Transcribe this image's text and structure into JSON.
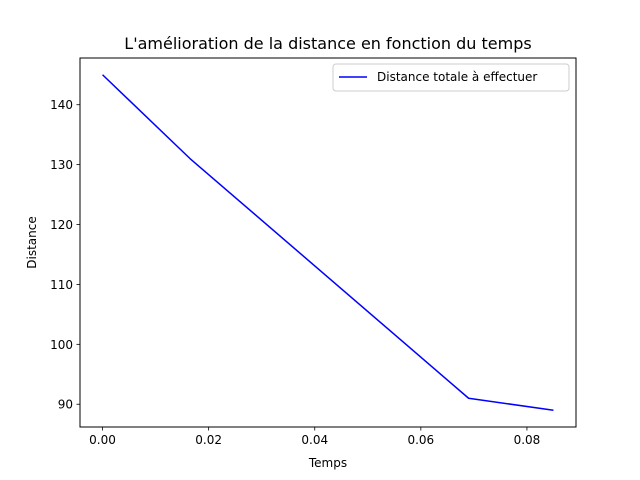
{
  "chart_data": {
    "type": "line",
    "title": "L'amélioration de la distance en fonction du temps",
    "xlabel": "Temps",
    "ylabel": "Distance",
    "xlim": [
      -0.00425,
      0.08925
    ],
    "ylim": [
      86.2,
      147.8
    ],
    "xticks": [
      0.0,
      0.02,
      0.04,
      0.06,
      0.08
    ],
    "xtick_labels": [
      "0.00",
      "0.02",
      "0.04",
      "0.06",
      "0.08"
    ],
    "yticks": [
      90,
      100,
      110,
      120,
      130,
      140
    ],
    "ytick_labels": [
      "90",
      "100",
      "110",
      "120",
      "130",
      "140"
    ],
    "grid": false,
    "legend_position": "top-right",
    "series": [
      {
        "name": "Distance totale à effectuer",
        "color": "#0000ff",
        "x": [
          0.0,
          0.0165,
          0.069,
          0.085
        ],
        "y": [
          145,
          131,
          91,
          89
        ]
      }
    ]
  }
}
